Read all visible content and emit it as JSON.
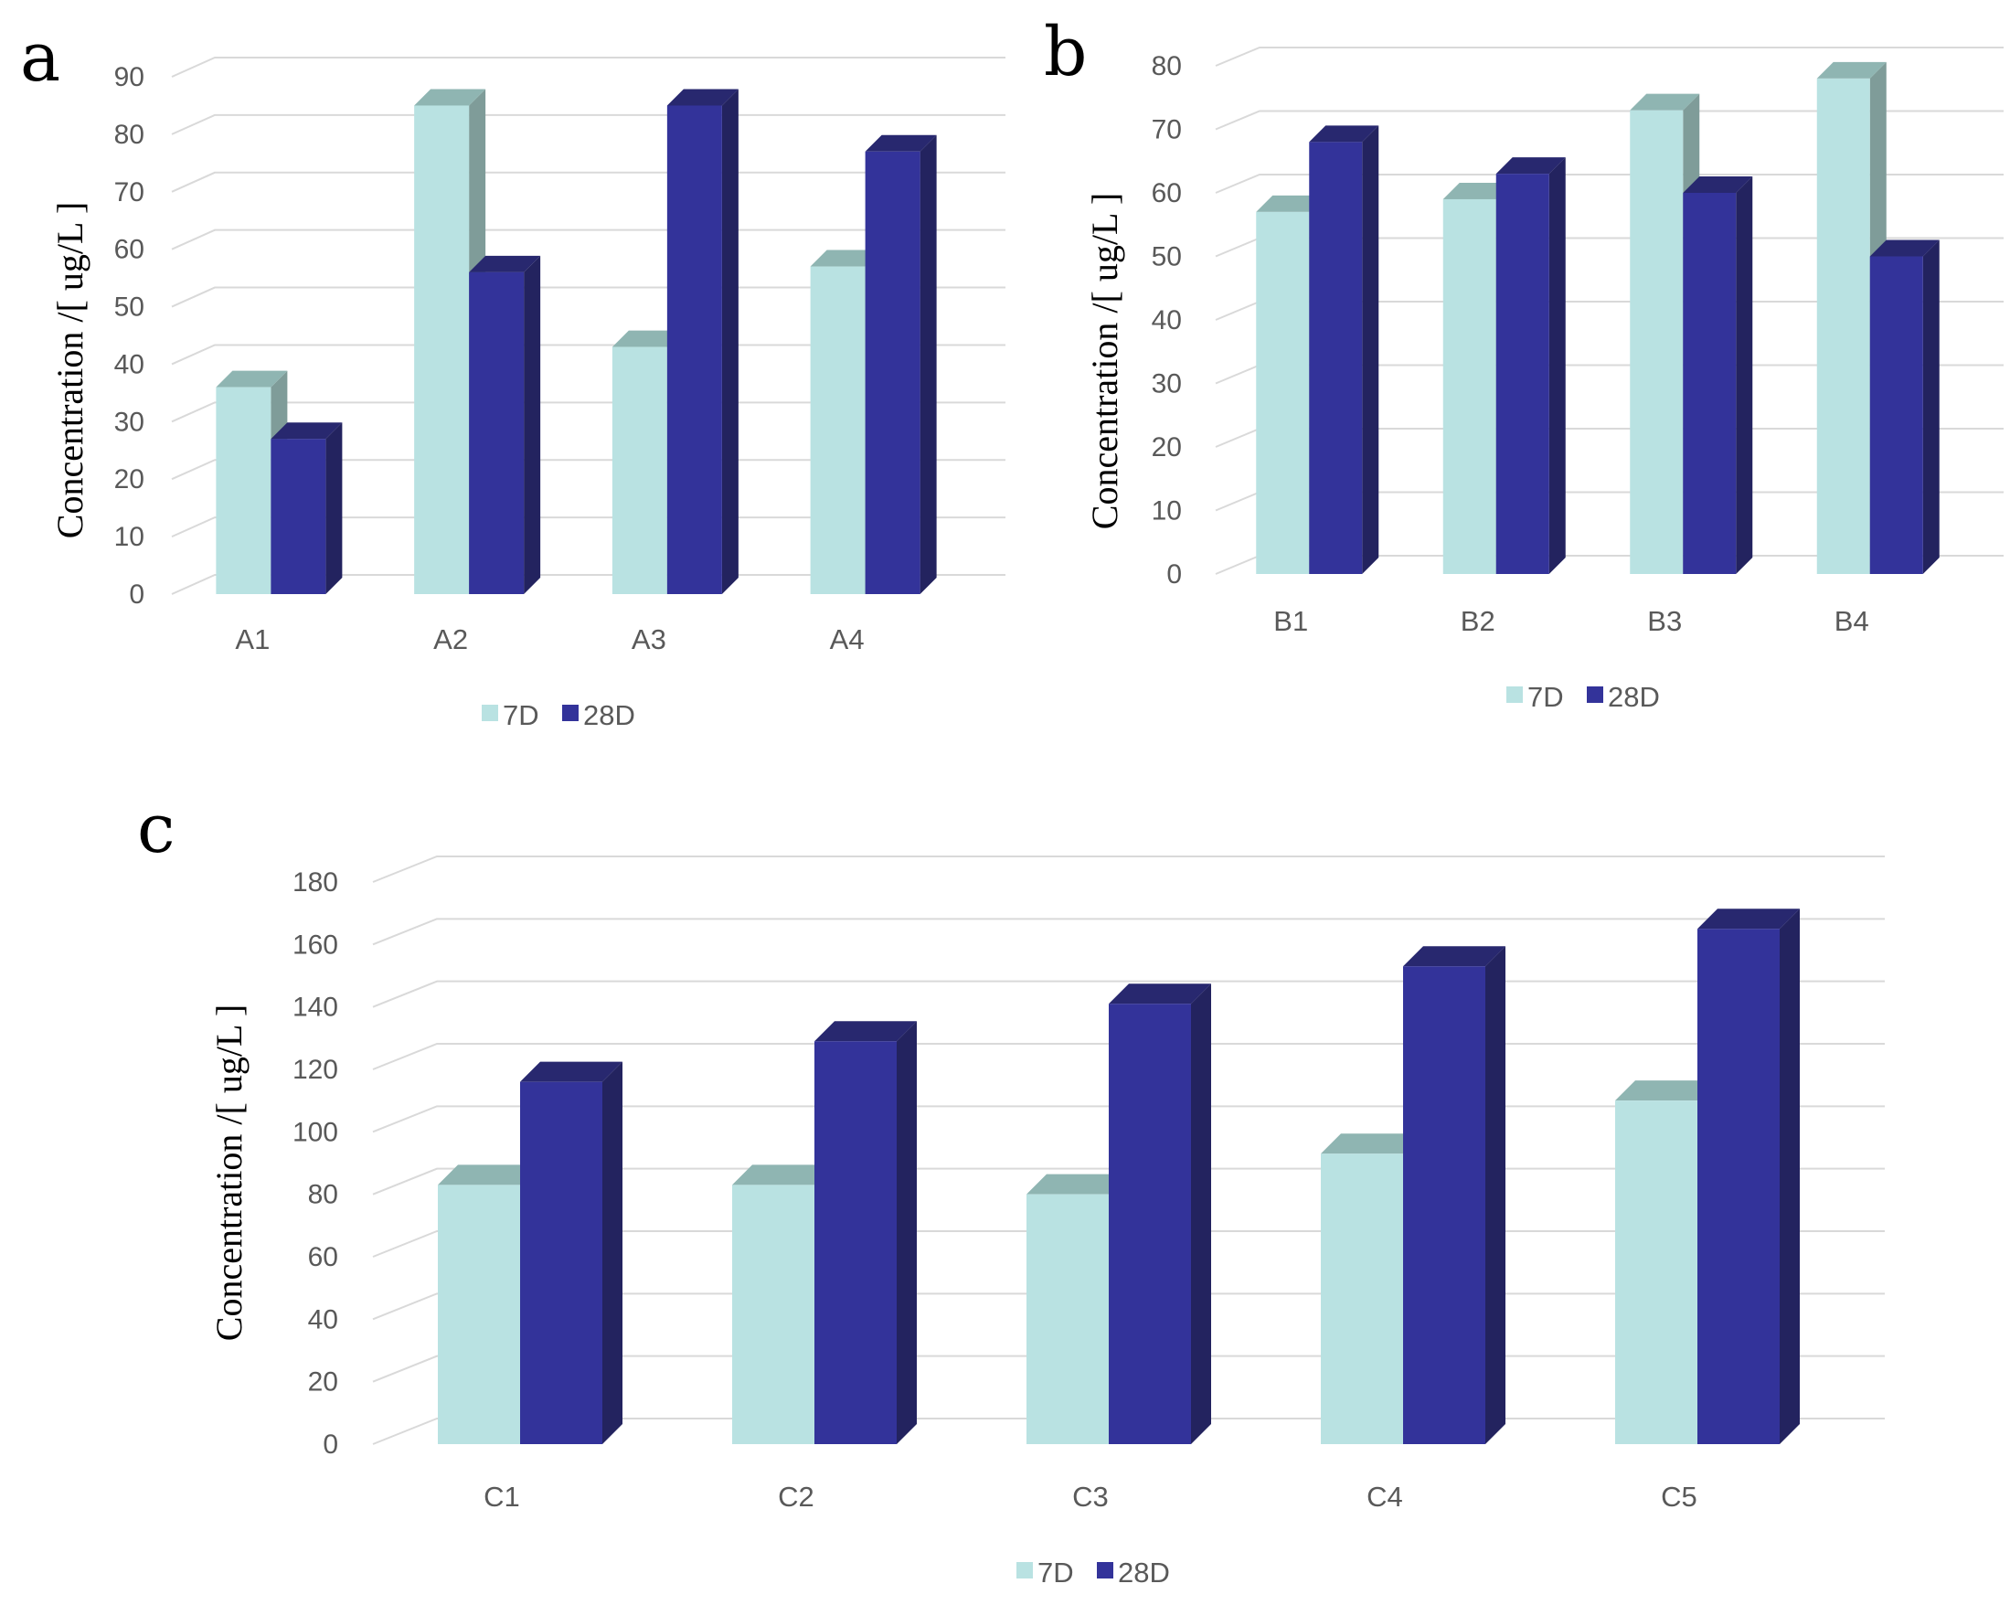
{
  "colors": {
    "d7_front": "#b9e2e2",
    "d7_top": "#8fb5b2",
    "d7_side": "#7f9c99",
    "d28_front": "#33339a",
    "d28_top": "#28286f",
    "d28_side": "#23235f",
    "grid": "#d9d9d9"
  },
  "chart_data": [
    {
      "type": "bar",
      "panel": "a",
      "ylabel": "Concentration /[ ug/L ]",
      "categories": [
        "A1",
        "A2",
        "A3",
        "A4"
      ],
      "series": [
        {
          "name": "7D",
          "values": [
            36,
            85,
            43,
            57
          ]
        },
        {
          "name": "28D",
          "values": [
            27,
            56,
            85,
            77
          ]
        }
      ],
      "ylim": [
        0,
        90
      ],
      "yticks": [
        0,
        10,
        20,
        30,
        40,
        50,
        60,
        70,
        80,
        90
      ],
      "grid": true,
      "legend": "bottom-center"
    },
    {
      "type": "bar",
      "panel": "b",
      "ylabel": "Concentration /[ ug/L ]",
      "categories": [
        "B1",
        "B2",
        "B3",
        "B4"
      ],
      "series": [
        {
          "name": "7D",
          "values": [
            57,
            59,
            73,
            78
          ]
        },
        {
          "name": "28D",
          "values": [
            68,
            63,
            60,
            50
          ]
        }
      ],
      "ylim": [
        0,
        80
      ],
      "yticks": [
        0,
        10,
        20,
        30,
        40,
        50,
        60,
        70,
        80
      ],
      "grid": true,
      "legend": "bottom-center"
    },
    {
      "type": "bar",
      "panel": "c",
      "ylabel": "Concentration /[ ug/L ]",
      "categories": [
        "C1",
        "C2",
        "C3",
        "C4",
        "C5"
      ],
      "series": [
        {
          "name": "7D",
          "values": [
            83,
            83,
            80,
            93,
            110
          ]
        },
        {
          "name": "28D",
          "values": [
            116,
            129,
            141,
            153,
            165
          ]
        }
      ],
      "ylim": [
        0,
        180
      ],
      "yticks": [
        0,
        20,
        40,
        60,
        80,
        100,
        120,
        140,
        160,
        180
      ],
      "grid": true,
      "legend": "bottom-center"
    }
  ]
}
